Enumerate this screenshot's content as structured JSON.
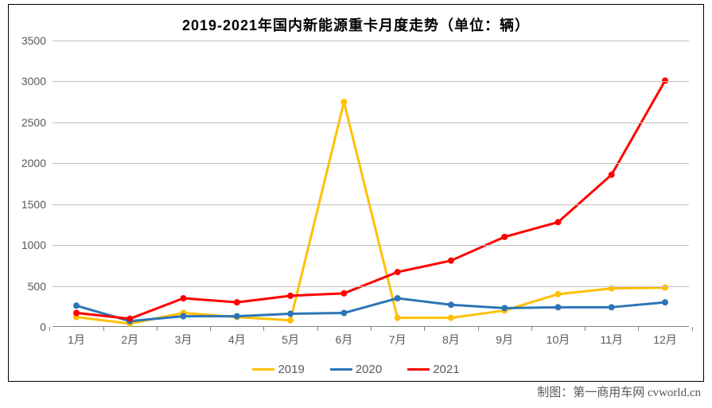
{
  "chart": {
    "type": "line",
    "title": "2019-2021年国内新能源重卡月度走势（单位：辆）",
    "title_fontsize": 18,
    "title_color": "#000000",
    "background_color": "#ffffff",
    "border_color": "#000000",
    "grid_color": "#bfbfbf",
    "axis_color": "#808080",
    "tick_label_color": "#595959",
    "tick_fontsize": 14,
    "categories": [
      "1月",
      "2月",
      "3月",
      "4月",
      "5月",
      "6月",
      "7月",
      "8月",
      "9月",
      "10月",
      "11月",
      "12月"
    ],
    "ylim": [
      0,
      3500
    ],
    "ytick_step": 500,
    "line_width": 3,
    "marker_radius": 4,
    "series": [
      {
        "name": "2019",
        "color": "#ffc000",
        "values": [
          120,
          40,
          170,
          120,
          80,
          2750,
          110,
          110,
          200,
          400,
          470,
          480
        ]
      },
      {
        "name": "2020",
        "color": "#2e75b6",
        "values": [
          260,
          70,
          130,
          130,
          160,
          170,
          350,
          270,
          230,
          240,
          240,
          300
        ]
      },
      {
        "name": "2021",
        "color": "#ff0000",
        "values": [
          170,
          100,
          350,
          300,
          380,
          410,
          670,
          810,
          1100,
          1280,
          1860,
          3010
        ]
      }
    ],
    "legend": {
      "position": "bottom",
      "fontsize": 15
    }
  },
  "attribution": "制图：第一商用车网 cvworld.cn"
}
